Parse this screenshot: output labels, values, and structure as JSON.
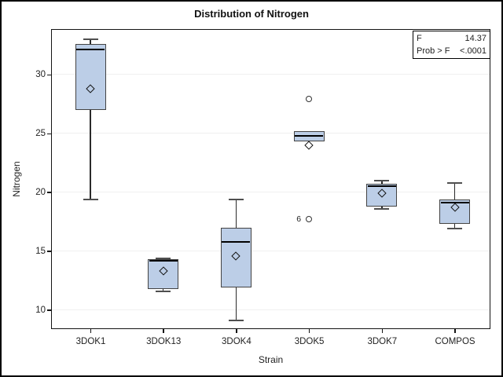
{
  "chart_data": {
    "type": "box",
    "title": "Distribution of Nitrogen",
    "xlabel": "Strain",
    "ylabel": "Nitrogen",
    "categories": [
      "3DOK1",
      "3DOK13",
      "3DOK4",
      "3DOK5",
      "3DOK7",
      "COMPOS"
    ],
    "yticks": [
      10,
      15,
      20,
      25,
      30
    ],
    "ylim": [
      8.5,
      33.8
    ],
    "grid": "horizontal",
    "legend": "none",
    "boxes": [
      {
        "strain": "3DOK1",
        "whisker_low": 19.4,
        "q1": 27.0,
        "median": 32.1,
        "q3": 32.6,
        "whisker_high": 33.0,
        "mean": 28.8,
        "outliers": []
      },
      {
        "strain": "3DOK13",
        "whisker_low": 11.6,
        "q1": 11.8,
        "median": 14.2,
        "q3": 14.3,
        "whisker_high": 14.4,
        "mean": 13.3,
        "outliers": []
      },
      {
        "strain": "3DOK4",
        "whisker_low": 9.1,
        "q1": 11.9,
        "median": 15.8,
        "q3": 17.0,
        "whisker_high": 19.4,
        "mean": 14.6,
        "outliers": []
      },
      {
        "strain": "3DOK5",
        "whisker_low": 24.3,
        "q1": 24.3,
        "median": 24.8,
        "q3": 25.2,
        "whisker_high": 25.2,
        "mean": 24.0,
        "outliers": [
          {
            "value": 27.9,
            "label": ""
          },
          {
            "value": 17.7,
            "label": "6"
          }
        ]
      },
      {
        "strain": "3DOK7",
        "whisker_low": 18.6,
        "q1": 18.8,
        "median": 20.5,
        "q3": 20.7,
        "whisker_high": 21.0,
        "mean": 19.9,
        "outliers": []
      },
      {
        "strain": "COMPOS",
        "whisker_low": 16.9,
        "q1": 17.3,
        "median": 19.1,
        "q3": 19.4,
        "whisker_high": 20.8,
        "mean": 18.7,
        "outliers": []
      }
    ],
    "stats_inset": {
      "rows": [
        {
          "label": "F",
          "value": "14.37"
        },
        {
          "label": "Prob > F",
          "value": "<.0001"
        }
      ]
    },
    "colors": {
      "box_fill": "#bccee7",
      "box_border": "#434343",
      "median": "#000000",
      "whisker": "#2a2a2a",
      "cap": "#4f4f4f",
      "mean_marker": "#111111",
      "outlier": "#333333",
      "grid": "#f0f0f0",
      "frame": "#141414",
      "text": "#222222"
    }
  }
}
